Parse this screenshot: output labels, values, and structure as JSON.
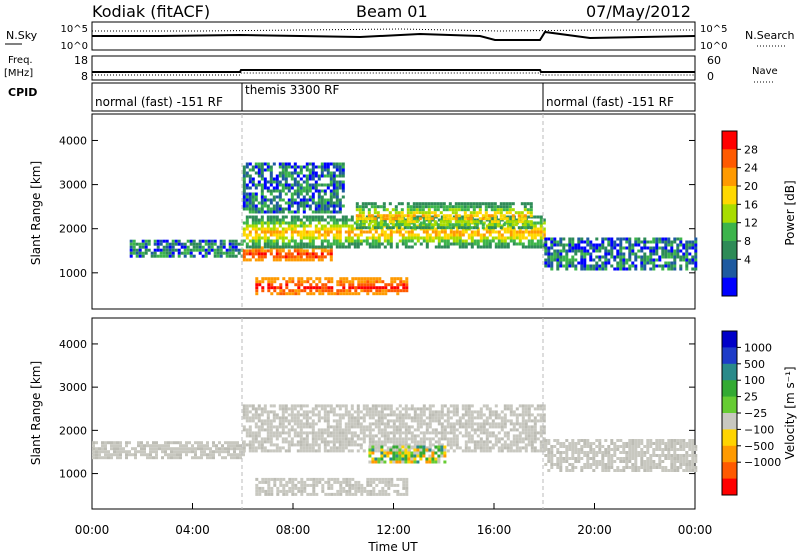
{
  "header": {
    "radar": "Kodiak (fitACF)",
    "beam": "Beam 01",
    "date": "07/May/2012"
  },
  "side_labels": {
    "nsky": "N.Sky",
    "freq": "Freq.",
    "freq_unit": "[MHz]",
    "cpid": "CPID",
    "nsearch": "N.Search",
    "nave": "Nave"
  },
  "noise_panel": {
    "left_ticks": [
      "10^5",
      "10^0"
    ],
    "right_ticks": [
      "10^5",
      "10^0"
    ]
  },
  "freq_panel": {
    "left_ticks": [
      "18",
      "8"
    ],
    "right_ticks": [
      "60",
      "0"
    ]
  },
  "cpid_panel": {
    "segments": [
      {
        "label": "normal (fast) -151 RF",
        "start_hr": 0,
        "end_hr": 6
      },
      {
        "label": "themis 3300 RF",
        "start_hr": 6,
        "end_hr": 18
      },
      {
        "label": "normal (fast) -151 RF",
        "start_hr": 18,
        "end_hr": 24
      }
    ]
  },
  "power_colorbar": {
    "label": "Power [dB]",
    "ticks": [
      "28",
      "24",
      "20",
      "16",
      "12",
      "8",
      "4"
    ],
    "colors": [
      "#ff0000",
      "#ff5a00",
      "#ff9a00",
      "#ffd800",
      "#a8dc00",
      "#3cb44b",
      "#2e8b57",
      "#1e5aa0",
      "#0000ff"
    ]
  },
  "velocity_colorbar": {
    "label": "Velocity [m s⁻¹]",
    "ticks": [
      "1000",
      "500",
      "100",
      "25",
      "−25",
      "−100",
      "−500",
      "−1000"
    ],
    "colors": [
      "#0000c8",
      "#1e3cc8",
      "#2a8a8a",
      "#33aa33",
      "#66cc33",
      "#c8c8c0",
      "#ffd400",
      "#ff9a00",
      "#ff5a00",
      "#ff0000"
    ]
  },
  "chart_data": {
    "type": "heatmap",
    "xlabel": "Time UT",
    "ylabel": "Slant Range [km]",
    "x_ticks": [
      "00:00",
      "04:00",
      "08:00",
      "12:00",
      "16:00",
      "20:00",
      "00:00"
    ],
    "xlim_hours": [
      0,
      24
    ],
    "y_ticks": [
      1000,
      2000,
      3000,
      4000
    ],
    "ylim_km": [
      180,
      4600
    ],
    "mode_change_hours": [
      6,
      18
    ],
    "panels": [
      {
        "name": "power",
        "bands": [
          {
            "start_hr": 1.5,
            "end_hr": 6,
            "range_km": [
              1400,
              1750
            ],
            "level": "low"
          },
          {
            "start_hr": 6,
            "end_hr": 9.5,
            "range_km": [
              1300,
              1600
            ],
            "level": "high"
          },
          {
            "start_hr": 6.5,
            "end_hr": 12.5,
            "range_km": [
              500,
              900
            ],
            "level": "high"
          },
          {
            "start_hr": 6,
            "end_hr": 18,
            "range_km": [
              1600,
              2300
            ],
            "level": "mid"
          },
          {
            "start_hr": 6,
            "end_hr": 10,
            "range_km": [
              2400,
              3500
            ],
            "level": "low"
          },
          {
            "start_hr": 10.5,
            "end_hr": 17.5,
            "range_km": [
              2000,
              2600
            ],
            "level": "mid"
          },
          {
            "start_hr": 18,
            "end_hr": 24,
            "range_km": [
              1100,
              1800
            ],
            "level": "low"
          }
        ]
      },
      {
        "name": "velocity",
        "bands": [
          {
            "start_hr": 0,
            "end_hr": 6,
            "range_km": [
              1400,
              1750
            ],
            "level": "near_zero"
          },
          {
            "start_hr": 6,
            "end_hr": 18,
            "range_km": [
              1500,
              2600
            ],
            "level": "near_zero"
          },
          {
            "start_hr": 6.5,
            "end_hr": 12.5,
            "range_km": [
              500,
              900
            ],
            "level": "near_zero"
          },
          {
            "start_hr": 11,
            "end_hr": 14,
            "range_km": [
              1250,
              1650
            ],
            "level": "mixed"
          },
          {
            "start_hr": 18,
            "end_hr": 24,
            "range_km": [
              1100,
              1800
            ],
            "level": "near_zero"
          }
        ]
      }
    ]
  }
}
